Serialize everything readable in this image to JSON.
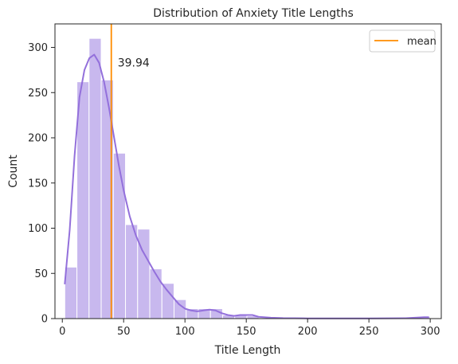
{
  "chart_data": {
    "type": "bar",
    "title": "Distribution of Anxiety Title Lengths",
    "xlabel": "Title Length",
    "ylabel": "Count",
    "xlim": [
      -6,
      309
    ],
    "ylim": [
      0,
      326
    ],
    "xticks": [
      0,
      50,
      100,
      150,
      200,
      250,
      300
    ],
    "yticks": [
      0,
      50,
      100,
      150,
      200,
      250,
      300
    ],
    "bin_width": 9.9,
    "bins": [
      {
        "x0": 2.0,
        "x1": 11.9,
        "count": 57
      },
      {
        "x0": 11.9,
        "x1": 21.8,
        "count": 262
      },
      {
        "x0": 21.8,
        "x1": 31.7,
        "count": 310
      },
      {
        "x0": 31.7,
        "x1": 41.6,
        "count": 264
      },
      {
        "x0": 41.6,
        "x1": 51.5,
        "count": 183
      },
      {
        "x0": 51.5,
        "x1": 61.4,
        "count": 104
      },
      {
        "x0": 61.4,
        "x1": 71.3,
        "count": 99
      },
      {
        "x0": 71.3,
        "x1": 81.2,
        "count": 55
      },
      {
        "x0": 81.2,
        "x1": 91.1,
        "count": 39
      },
      {
        "x0": 91.1,
        "x1": 101.0,
        "count": 21
      },
      {
        "x0": 101.0,
        "x1": 110.9,
        "count": 11
      },
      {
        "x0": 110.9,
        "x1": 120.8,
        "count": 11
      },
      {
        "x0": 120.8,
        "x1": 130.7,
        "count": 11
      },
      {
        "x0": 130.7,
        "x1": 140.6,
        "count": 4
      },
      {
        "x0": 140.6,
        "x1": 150.5,
        "count": 4
      },
      {
        "x0": 150.5,
        "x1": 160.4,
        "count": 3
      },
      {
        "x0": 160.4,
        "x1": 170.3,
        "count": 1
      },
      {
        "x0": 170.3,
        "x1": 180.2,
        "count": 1
      },
      {
        "x0": 290.0,
        "x1": 299.9,
        "count": 2
      }
    ],
    "kde": [
      [
        2,
        38
      ],
      [
        6,
        98
      ],
      [
        10,
        180
      ],
      [
        14,
        245
      ],
      [
        18,
        275
      ],
      [
        22,
        288
      ],
      [
        26,
        292
      ],
      [
        30,
        283
      ],
      [
        34,
        262
      ],
      [
        38,
        234
      ],
      [
        42,
        202
      ],
      [
        46,
        170
      ],
      [
        50,
        142
      ],
      [
        55,
        113
      ],
      [
        60,
        92
      ],
      [
        65,
        76
      ],
      [
        70,
        64
      ],
      [
        75,
        52
      ],
      [
        80,
        41
      ],
      [
        85,
        32
      ],
      [
        90,
        24
      ],
      [
        95,
        16
      ],
      [
        100,
        11
      ],
      [
        105,
        9
      ],
      [
        110,
        8
      ],
      [
        115,
        9
      ],
      [
        120,
        10
      ],
      [
        125,
        9
      ],
      [
        130,
        6
      ],
      [
        135,
        4
      ],
      [
        140,
        3
      ],
      [
        145,
        4
      ],
      [
        150,
        4
      ],
      [
        155,
        4
      ],
      [
        160,
        2
      ],
      [
        170,
        1
      ],
      [
        180,
        0.5
      ],
      [
        200,
        0.3
      ],
      [
        250,
        0.3
      ],
      [
        280,
        0.4
      ],
      [
        295,
        1.5
      ],
      [
        299,
        1.5
      ]
    ],
    "mean": 39.94,
    "mean_label": "39.94",
    "legend": {
      "entries": [
        "mean"
      ],
      "placement": "top-right"
    },
    "grid": false,
    "colors": {
      "bar_fill": "#c8b8ee",
      "bar_edge": "#ffffff",
      "kde": "#9370db",
      "mean": "#ff8c00",
      "axis": "#262626"
    }
  }
}
